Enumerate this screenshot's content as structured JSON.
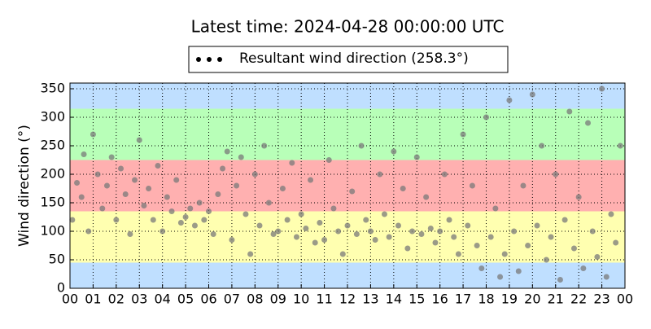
{
  "chart_data": {
    "type": "scatter",
    "title": "Latest time: 2024-04-28 00:00:00 UTC",
    "ylabel": "Wind direction (°)",
    "xlim": [
      0,
      24
    ],
    "xticks": [
      {
        "value": 0,
        "label": "00"
      },
      {
        "value": 1,
        "label": "01"
      },
      {
        "value": 2,
        "label": "02"
      },
      {
        "value": 3,
        "label": "03"
      },
      {
        "value": 4,
        "label": "04"
      },
      {
        "value": 5,
        "label": "05"
      },
      {
        "value": 6,
        "label": "06"
      },
      {
        "value": 7,
        "label": "07"
      },
      {
        "value": 8,
        "label": "08"
      },
      {
        "value": 9,
        "label": "09"
      },
      {
        "value": 10,
        "label": "10"
      },
      {
        "value": 11,
        "label": "11"
      },
      {
        "value": 12,
        "label": "12"
      },
      {
        "value": 13,
        "label": "13"
      },
      {
        "value": 14,
        "label": "14"
      },
      {
        "value": 15,
        "label": "15"
      },
      {
        "value": 16,
        "label": "16"
      },
      {
        "value": 17,
        "label": "17"
      },
      {
        "value": 18,
        "label": "18"
      },
      {
        "value": 19,
        "label": "19"
      },
      {
        "value": 20,
        "label": "20"
      },
      {
        "value": 21,
        "label": "21"
      },
      {
        "value": 22,
        "label": "22"
      },
      {
        "value": 23,
        "label": "23"
      },
      {
        "value": 24,
        "label": "00"
      }
    ],
    "ylim": [
      0,
      360
    ],
    "yticks": [
      0,
      50,
      100,
      150,
      200,
      250,
      300,
      350
    ],
    "grid": true,
    "bands": [
      {
        "from": 0,
        "to": 45,
        "color": "#bfdfff"
      },
      {
        "from": 45,
        "to": 135,
        "color": "#ffffb0"
      },
      {
        "from": 135,
        "to": 225,
        "color": "#ffb0b0"
      },
      {
        "from": 225,
        "to": 315,
        "color": "#b8ffb8"
      },
      {
        "from": 315,
        "to": 360,
        "color": "#bfdfff"
      }
    ],
    "legend_marker_color": "#000000",
    "legend_position": "top",
    "x": [
      0.1,
      0.3,
      0.5,
      0.6,
      0.8,
      1.0,
      1.2,
      1.4,
      1.6,
      1.8,
      2.0,
      2.2,
      2.4,
      2.6,
      2.8,
      3.0,
      3.2,
      3.4,
      3.6,
      3.8,
      4.0,
      4.2,
      4.4,
      4.6,
      4.8,
      5.0,
      5.2,
      5.4,
      5.6,
      5.8,
      6.0,
      6.2,
      6.4,
      6.6,
      6.8,
      7.0,
      7.2,
      7.4,
      7.6,
      7.8,
      8.0,
      8.2,
      8.4,
      8.6,
      8.8,
      9.0,
      9.2,
      9.4,
      9.6,
      9.8,
      10.0,
      10.2,
      10.4,
      10.6,
      10.8,
      11.0,
      11.2,
      11.4,
      11.6,
      11.8,
      12.0,
      12.2,
      12.4,
      12.6,
      12.8,
      13.0,
      13.2,
      13.4,
      13.6,
      13.8,
      14.0,
      14.2,
      14.4,
      14.6,
      14.8,
      15.0,
      15.2,
      15.4,
      15.6,
      15.8,
      16.0,
      16.2,
      16.4,
      16.6,
      16.8,
      17.0,
      17.2,
      17.4,
      17.6,
      17.8,
      18.0,
      18.2,
      18.4,
      18.6,
      18.8,
      19.0,
      19.2,
      19.4,
      19.6,
      19.8,
      20.0,
      20.2,
      20.4,
      20.6,
      20.8,
      21.0,
      21.2,
      21.4,
      21.6,
      21.8,
      22.0,
      22.2,
      22.4,
      22.6,
      22.8,
      23.0,
      23.2,
      23.4,
      23.6,
      23.8
    ],
    "series": [
      {
        "name": "Resultant wind direction (258.3°)",
        "color": "#7a7a7a",
        "values": [
          120,
          185,
          160,
          235,
          100,
          270,
          200,
          140,
          180,
          230,
          120,
          210,
          165,
          95,
          190,
          260,
          145,
          175,
          120,
          215,
          100,
          160,
          135,
          190,
          115,
          125,
          140,
          110,
          150,
          120,
          135,
          95,
          165,
          210,
          240,
          85,
          180,
          230,
          130,
          60,
          200,
          110,
          250,
          150,
          95,
          100,
          175,
          120,
          220,
          90,
          130,
          105,
          190,
          80,
          115,
          85,
          225,
          140,
          100,
          60,
          110,
          170,
          95,
          250,
          120,
          100,
          85,
          200,
          130,
          90,
          240,
          110,
          175,
          70,
          100,
          230,
          95,
          160,
          105,
          80,
          100,
          200,
          120,
          90,
          60,
          270,
          110,
          180,
          75,
          35,
          300,
          90,
          140,
          20,
          60,
          330,
          100,
          30,
          180,
          75,
          340,
          110,
          250,
          50,
          90,
          200,
          15,
          120,
          310,
          70,
          160,
          35,
          290,
          100,
          55,
          350,
          20,
          130,
          80,
          250
        ]
      }
    ]
  }
}
